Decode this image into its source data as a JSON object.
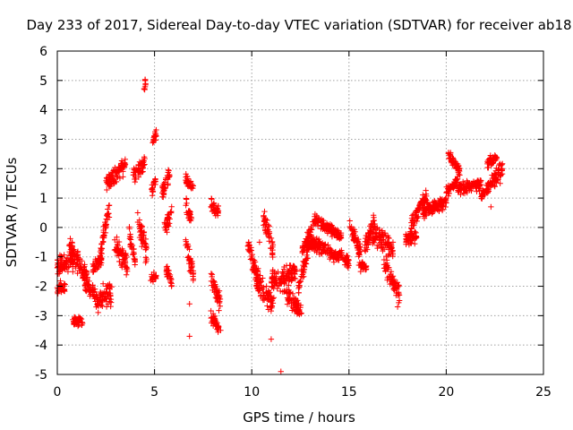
{
  "chart_data": {
    "type": "scatter",
    "title": "Day 233 of 2017, Sidereal Day-to-day VTEC variation (SDTVAR) for receiver ab18",
    "xlabel": "GPS time / hours",
    "ylabel": "SDTVAR / TECUs",
    "xlim": [
      0,
      25
    ],
    "ylim": [
      -5,
      6
    ],
    "x_ticks": [
      "0",
      "5",
      "10",
      "15",
      "20",
      "25"
    ],
    "y_ticks": [
      "-5",
      "-4",
      "-3",
      "-2",
      "-1",
      "0",
      "1",
      "2",
      "3",
      "4",
      "5",
      "6"
    ],
    "grid": true,
    "marker": "+",
    "series_color": "#ff0000",
    "segments": [
      {
        "x": [
          0.0,
          0.9
        ],
        "y": [
          -1.4,
          -1.0
        ],
        "spread": 0.55
      },
      {
        "x": [
          0.0,
          0.4
        ],
        "y": [
          -2.1,
          -2.0
        ],
        "spread": 0.25
      },
      {
        "x": [
          0.6,
          1.6
        ],
        "y": [
          -0.6,
          -1.8
        ],
        "spread": 0.5
      },
      {
        "x": [
          0.8,
          1.3
        ],
        "y": [
          -3.2,
          -3.2
        ],
        "spread": 0.25
      },
      {
        "x": [
          1.4,
          2.0
        ],
        "y": [
          -1.8,
          -2.3
        ],
        "spread": 0.4
      },
      {
        "x": [
          1.8,
          2.3
        ],
        "y": [
          -1.4,
          -1.0
        ],
        "spread": 0.3
      },
      {
        "x": [
          2.0,
          2.8
        ],
        "y": [
          -2.6,
          -2.2
        ],
        "spread": 0.6
      },
      {
        "x": [
          2.2,
          2.7
        ],
        "y": [
          -0.8,
          0.8
        ],
        "spread": 0.4
      },
      {
        "x": [
          2.5,
          3.5
        ],
        "y": [
          1.5,
          2.1
        ],
        "spread": 0.4
      },
      {
        "x": [
          2.9,
          3.6
        ],
        "y": [
          -0.5,
          -1.3
        ],
        "spread": 0.5
      },
      {
        "x": [
          3.7,
          4.0
        ],
        "y": [
          -0.1,
          -1.2
        ],
        "spread": 0.5
      },
      {
        "x": [
          3.9,
          4.5
        ],
        "y": [
          1.8,
          2.2
        ],
        "spread": 0.4
      },
      {
        "x": [
          4.1,
          4.6
        ],
        "y": [
          0.5,
          -1.0
        ],
        "spread": 0.6
      },
      {
        "x": [
          4.45,
          4.55
        ],
        "y": [
          4.6,
          5.0
        ],
        "spread": 0.3
      },
      {
        "x": [
          4.9,
          5.1
        ],
        "y": [
          2.9,
          3.2
        ],
        "spread": 0.25
      },
      {
        "x": [
          4.85,
          5.05
        ],
        "y": [
          1.2,
          1.6
        ],
        "spread": 0.3
      },
      {
        "x": [
          4.8,
          5.1
        ],
        "y": [
          -1.8,
          -1.6
        ],
        "spread": 0.2
      },
      {
        "x": [
          5.4,
          5.8
        ],
        "y": [
          1.2,
          1.9
        ],
        "spread": 0.4
      },
      {
        "x": [
          5.5,
          5.9
        ],
        "y": [
          0.0,
          0.5
        ],
        "spread": 0.4
      },
      {
        "x": [
          5.6,
          5.9
        ],
        "y": [
          -1.4,
          -1.9
        ],
        "spread": 0.3
      },
      {
        "x": [
          6.6,
          7.0
        ],
        "y": [
          1.6,
          1.3
        ],
        "spread": 0.3
      },
      {
        "x": [
          6.6,
          6.9
        ],
        "y": [
          0.8,
          0.3
        ],
        "spread": 0.4
      },
      {
        "x": [
          6.6,
          7.0
        ],
        "y": [
          -0.5,
          -1.6
        ],
        "spread": 0.5
      },
      {
        "x": [
          7.9,
          8.3
        ],
        "y": [
          0.8,
          0.5
        ],
        "spread": 0.3
      },
      {
        "x": [
          7.9,
          8.4
        ],
        "y": [
          -1.8,
          -2.6
        ],
        "spread": 0.5
      },
      {
        "x": [
          7.9,
          8.3
        ],
        "y": [
          -3.0,
          -3.4
        ],
        "spread": 0.3
      },
      {
        "x": [
          9.8,
          10.3
        ],
        "y": [
          -0.5,
          -1.9
        ],
        "spread": 0.6
      },
      {
        "x": [
          10.2,
          11.1
        ],
        "y": [
          -1.7,
          -2.7
        ],
        "spread": 0.6
      },
      {
        "x": [
          10.6,
          11.1
        ],
        "y": [
          0.4,
          -0.8
        ],
        "spread": 0.5
      },
      {
        "x": [
          11.0,
          12.3
        ],
        "y": [
          -1.9,
          -1.5
        ],
        "spread": 0.6
      },
      {
        "x": [
          11.8,
          12.6
        ],
        "y": [
          -2.3,
          -2.9
        ],
        "spread": 0.4
      },
      {
        "x": [
          12.4,
          13.0
        ],
        "y": [
          -2.0,
          -0.6
        ],
        "spread": 0.4
      },
      {
        "x": [
          12.6,
          13.2
        ],
        "y": [
          -0.8,
          0.1
        ],
        "spread": 0.3
      },
      {
        "x": [
          13.0,
          14.5
        ],
        "y": [
          -0.5,
          -1.0
        ],
        "spread": 0.35
      },
      {
        "x": [
          13.2,
          14.6
        ],
        "y": [
          0.3,
          -0.3
        ],
        "spread": 0.25
      },
      {
        "x": [
          14.5,
          15.0
        ],
        "y": [
          -0.9,
          -1.2
        ],
        "spread": 0.3
      },
      {
        "x": [
          15.0,
          15.6
        ],
        "y": [
          0.2,
          -0.9
        ],
        "spread": 0.35
      },
      {
        "x": [
          15.5,
          15.9
        ],
        "y": [
          -1.2,
          -1.4
        ],
        "spread": 0.2
      },
      {
        "x": [
          15.8,
          16.3
        ],
        "y": [
          -0.7,
          0.3
        ],
        "spread": 0.4
      },
      {
        "x": [
          16.2,
          17.3
        ],
        "y": [
          -0.2,
          -0.8
        ],
        "spread": 0.6
      },
      {
        "x": [
          16.8,
          17.6
        ],
        "y": [
          -1.2,
          -2.3
        ],
        "spread": 0.4
      },
      {
        "x": [
          17.9,
          18.5
        ],
        "y": [
          -0.4,
          -0.3
        ],
        "spread": 0.3
      },
      {
        "x": [
          18.2,
          19.0
        ],
        "y": [
          0.1,
          1.1
        ],
        "spread": 0.35
      },
      {
        "x": [
          18.8,
          20.0
        ],
        "y": [
          0.5,
          0.9
        ],
        "spread": 0.3
      },
      {
        "x": [
          20.0,
          20.6
        ],
        "y": [
          1.2,
          1.6
        ],
        "spread": 0.25
      },
      {
        "x": [
          20.1,
          20.7
        ],
        "y": [
          2.5,
          1.9
        ],
        "spread": 0.25
      },
      {
        "x": [
          20.6,
          21.8
        ],
        "y": [
          1.3,
          1.5
        ],
        "spread": 0.3
      },
      {
        "x": [
          21.8,
          22.3
        ],
        "y": [
          1.1,
          1.5
        ],
        "spread": 0.25
      },
      {
        "x": [
          22.1,
          22.6
        ],
        "y": [
          2.2,
          2.4
        ],
        "spread": 0.25
      },
      {
        "x": [
          22.3,
          22.9
        ],
        "y": [
          1.5,
          2.0
        ],
        "spread": 0.45
      }
    ],
    "outliers": [
      {
        "x": 6.8,
        "y": -3.7
      },
      {
        "x": 11.5,
        "y": -4.9
      },
      {
        "x": 8.4,
        "y": -3.5
      },
      {
        "x": 11.0,
        "y": -3.8
      },
      {
        "x": 6.8,
        "y": -2.6
      },
      {
        "x": 17.5,
        "y": -2.7
      },
      {
        "x": 10.4,
        "y": -0.5
      },
      {
        "x": 15.6,
        "y": -1.5
      },
      {
        "x": 22.3,
        "y": 0.7
      },
      {
        "x": 3.3,
        "y": -0.9
      }
    ]
  }
}
